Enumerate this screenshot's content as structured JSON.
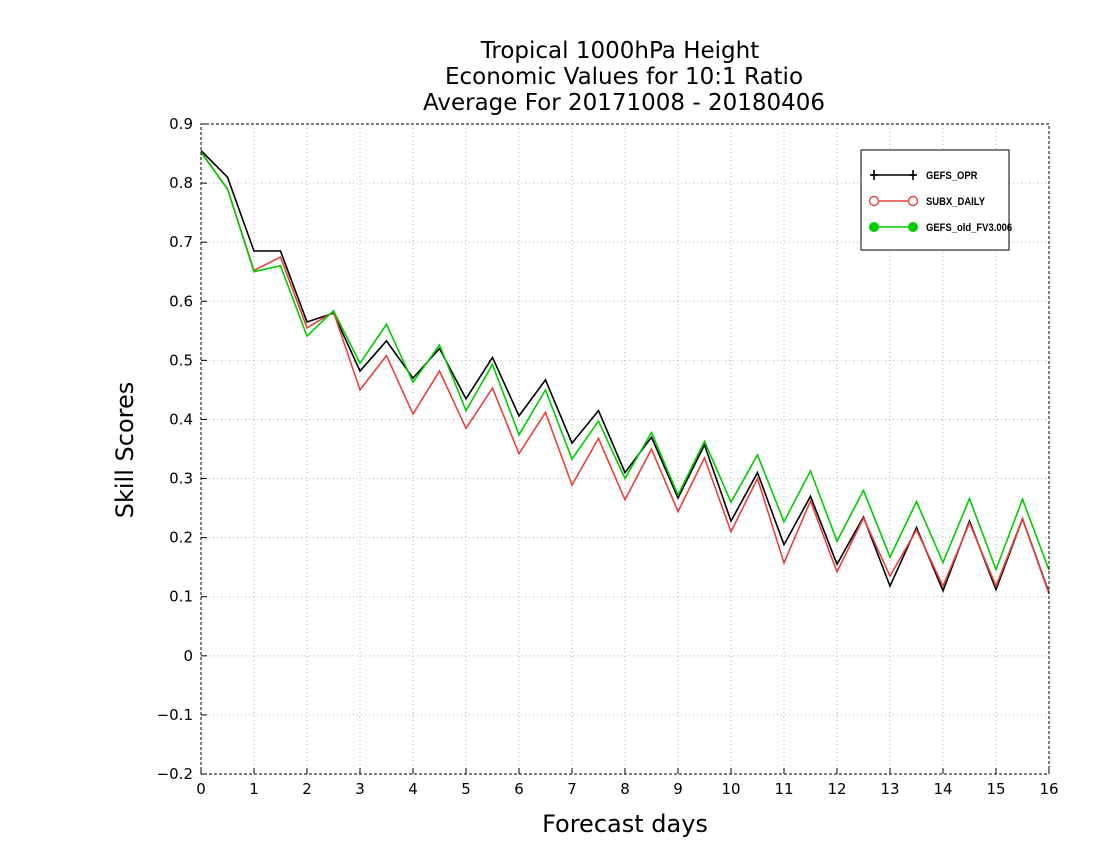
{
  "chart_data": {
    "type": "line",
    "title": [
      "Tropical 1000hPa Height",
      "Economic Values for 10:1 Ratio",
      "Average For 20171008 - 20180406"
    ],
    "xlabel": "Forecast days",
    "ylabel": "Skill Scores",
    "xlim": [
      0,
      16
    ],
    "ylim": [
      -0.2,
      0.9
    ],
    "x_ticks": [
      0,
      1,
      2,
      3,
      4,
      5,
      6,
      7,
      8,
      9,
      10,
      11,
      12,
      13,
      14,
      15,
      16
    ],
    "y_ticks": [
      -0.2,
      -0.1,
      0,
      0.1,
      0.2,
      0.3,
      0.4,
      0.5,
      0.6,
      0.7,
      0.8,
      0.9
    ],
    "grid": true,
    "legend_position": "top-right",
    "x": [
      0,
      0.5,
      1,
      1.5,
      2,
      2.5,
      3,
      3.5,
      4,
      4.5,
      5,
      5.5,
      6,
      6.5,
      7,
      7.5,
      8,
      8.5,
      9,
      9.5,
      10,
      10.5,
      11,
      11.5,
      12,
      12.5,
      13,
      13.5,
      14,
      14.5,
      15,
      15.5,
      16
    ],
    "series": [
      {
        "name": "GEFS_OPR",
        "color": "#000000",
        "marker": "plus",
        "values": [
          0.855,
          0.81,
          0.685,
          0.685,
          0.565,
          0.58,
          0.482,
          0.533,
          0.47,
          0.52,
          0.435,
          0.505,
          0.406,
          0.467,
          0.36,
          0.415,
          0.31,
          0.37,
          0.267,
          0.357,
          0.228,
          0.31,
          0.188,
          0.27,
          0.155,
          0.235,
          0.118,
          0.217,
          0.11,
          0.228,
          0.112,
          0.232,
          0.107
        ]
      },
      {
        "name": "SUBX_DAILY",
        "color": "#e8413c",
        "marker": "circle",
        "values": [
          0.853,
          0.79,
          0.652,
          0.675,
          0.555,
          0.582,
          0.45,
          0.508,
          0.409,
          0.482,
          0.385,
          0.453,
          0.342,
          0.412,
          0.289,
          0.368,
          0.264,
          0.35,
          0.244,
          0.335,
          0.21,
          0.3,
          0.157,
          0.262,
          0.142,
          0.233,
          0.135,
          0.213,
          0.118,
          0.225,
          0.118,
          0.232,
          0.105
        ]
      },
      {
        "name": "GEFS_old_FV3.006",
        "color": "#00cc00",
        "marker": "dot",
        "values": [
          0.852,
          0.79,
          0.65,
          0.66,
          0.541,
          0.584,
          0.495,
          0.561,
          0.463,
          0.526,
          0.415,
          0.493,
          0.374,
          0.45,
          0.333,
          0.397,
          0.3,
          0.378,
          0.272,
          0.363,
          0.26,
          0.34,
          0.227,
          0.313,
          0.194,
          0.28,
          0.167,
          0.261,
          0.158,
          0.266,
          0.146,
          0.265,
          0.145
        ]
      }
    ]
  }
}
